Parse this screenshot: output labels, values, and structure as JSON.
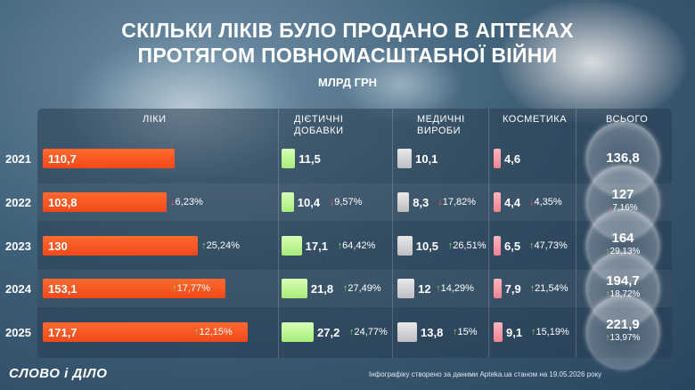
{
  "title": "Скільки ліків було продано в аптеках протягом повномасштабної війни",
  "subtitle": "МЛРД ГРН",
  "columns": [
    "ЛІКИ",
    "ДІЄТИЧНІ ДОБАВКИ",
    "МЕДИЧНІ ВИРОБИ",
    "КОСМЕТИКА",
    "ВСЬОГО"
  ],
  "column_lines": [
    [
      "ЛІКИ"
    ],
    [
      "ДІЄТИЧНІ",
      "ДОБАВКИ"
    ],
    [
      "МЕДИЧНІ",
      "ВИРОБИ"
    ],
    [
      "КОСМЕТИКА"
    ],
    [
      "ВСЬОГО"
    ]
  ],
  "colors": {
    "drugs": "#f2481a",
    "supplements": "#a7ec78",
    "devices": "#bdbdc2",
    "cosmetics": "#f08190",
    "up": "#7fe04f",
    "down": "#ff5a5a"
  },
  "chart_data": {
    "type": "table",
    "years": [
      "2021",
      "2022",
      "2023",
      "2024",
      "2025"
    ],
    "series": [
      {
        "name": "ЛІКИ",
        "values": [
          110.7,
          103.8,
          130,
          153.1,
          171.7
        ],
        "labels": [
          "110,7",
          "103,8",
          "130",
          "153,1",
          "171,7"
        ],
        "changes": [
          "",
          "6,23%",
          "25,24%",
          "17,77%",
          "12,15%"
        ],
        "directions": [
          "",
          "down",
          "up",
          "up",
          "up"
        ]
      },
      {
        "name": "ДІЄТИЧНІ ДОБАВКИ",
        "values": [
          11.5,
          10.4,
          17.1,
          21.8,
          27.2
        ],
        "labels": [
          "11,5",
          "10,4",
          "17,1",
          "21,8",
          "27,2"
        ],
        "changes": [
          "",
          "9,57%",
          "64,42%",
          "27,49%",
          "24,77%"
        ],
        "directions": [
          "",
          "down",
          "up",
          "up",
          "up"
        ]
      },
      {
        "name": "МЕДИЧНІ ВИРОБИ",
        "values": [
          10.1,
          8.3,
          10.5,
          12,
          13.8
        ],
        "labels": [
          "10,1",
          "8,3",
          "10,5",
          "12",
          "13,8"
        ],
        "changes": [
          "",
          "17,82%",
          "26,51%",
          "14,29%",
          "15%"
        ],
        "directions": [
          "",
          "down",
          "up",
          "up",
          "up"
        ]
      },
      {
        "name": "КОСМЕТИКА",
        "values": [
          4.6,
          4.4,
          6.5,
          7.9,
          9.1
        ],
        "labels": [
          "4,6",
          "4,4",
          "6,5",
          "7,9",
          "9,1"
        ],
        "changes": [
          "",
          "4,35%",
          "47,73%",
          "21,54%",
          "15,19%"
        ],
        "directions": [
          "",
          "down",
          "up",
          "up",
          "up"
        ]
      },
      {
        "name": "ВСЬОГО",
        "values": [
          136.8,
          127,
          164,
          194.7,
          221.9
        ],
        "labels": [
          "136,8",
          "127",
          "164",
          "194,7",
          "221,9"
        ],
        "changes": [
          "",
          "7,16%",
          "29,13%",
          "18,72%",
          "13,97%"
        ],
        "directions": [
          "",
          "down",
          "up",
          "up",
          "up"
        ]
      }
    ]
  },
  "logo": "СЛОВО і ДІЛО",
  "source": "Інфографіку створено за даними Apteka.ua станом на 19.05.2026 року"
}
